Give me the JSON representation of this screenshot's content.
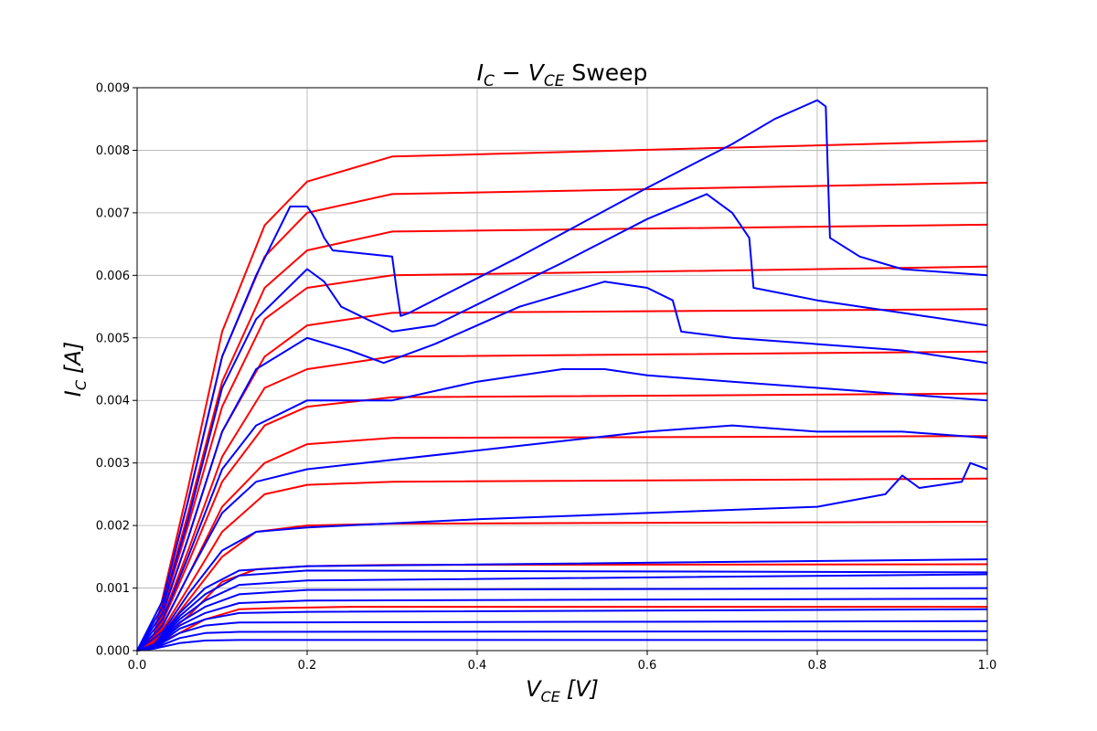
{
  "chart_data": {
    "type": "line",
    "title": {
      "i": "I",
      "i_sub": "C",
      "dash": " − ",
      "v": "V",
      "v_sub": "CE",
      "rest": " Sweep"
    },
    "xlabel": {
      "sym": "V",
      "sub": "CE",
      "unit": "[V]"
    },
    "ylabel": {
      "sym": "I",
      "sub": "C",
      "unit": "[A]"
    },
    "xlim": [
      0.0,
      1.0
    ],
    "ylim": [
      0.0,
      0.009
    ],
    "xticks": [
      "0.0",
      "0.2",
      "0.4",
      "0.6",
      "0.8",
      "1.0"
    ],
    "yticks": [
      "0.000",
      "0.001",
      "0.002",
      "0.003",
      "0.004",
      "0.005",
      "0.006",
      "0.007",
      "0.008",
      "0.009"
    ],
    "grid": true,
    "colors": {
      "model": "#ff0000",
      "measured": "#0000ff"
    },
    "series": [
      {
        "group": "model",
        "points": [
          [
            0,
            0
          ],
          [
            0.02,
            8e-05
          ],
          [
            0.05,
            0.00028
          ],
          [
            0.08,
            0.0005
          ],
          [
            0.12,
            0.00066
          ],
          [
            0.16,
            0.00068
          ],
          [
            0.25,
            0.0007
          ],
          [
            1.0,
            0.0007
          ]
        ]
      },
      {
        "group": "model",
        "points": [
          [
            0,
            0
          ],
          [
            0.02,
            0.0001
          ],
          [
            0.06,
            0.00055
          ],
          [
            0.1,
            0.0011
          ],
          [
            0.14,
            0.0013
          ],
          [
            0.2,
            0.00135
          ],
          [
            0.3,
            0.00137
          ],
          [
            1.0,
            0.00138
          ]
        ]
      },
      {
        "group": "model",
        "points": [
          [
            0,
            0
          ],
          [
            0.02,
            0.0001
          ],
          [
            0.06,
            0.0008
          ],
          [
            0.1,
            0.0015
          ],
          [
            0.14,
            0.0019
          ],
          [
            0.2,
            0.002
          ],
          [
            0.3,
            0.00203
          ],
          [
            1.0,
            0.00206
          ]
        ]
      },
      {
        "group": "model",
        "points": [
          [
            0,
            0
          ],
          [
            0.02,
            0.00012
          ],
          [
            0.06,
            0.001
          ],
          [
            0.1,
            0.0019
          ],
          [
            0.15,
            0.0025
          ],
          [
            0.2,
            0.00265
          ],
          [
            0.3,
            0.0027
          ],
          [
            1.0,
            0.00275
          ]
        ]
      },
      {
        "group": "model",
        "points": [
          [
            0,
            0
          ],
          [
            0.02,
            0.00013
          ],
          [
            0.06,
            0.0012
          ],
          [
            0.1,
            0.0023
          ],
          [
            0.15,
            0.003
          ],
          [
            0.2,
            0.0033
          ],
          [
            0.3,
            0.0034
          ],
          [
            1.0,
            0.00343
          ]
        ]
      },
      {
        "group": "model",
        "points": [
          [
            0,
            0
          ],
          [
            0.02,
            0.00015
          ],
          [
            0.06,
            0.0014
          ],
          [
            0.1,
            0.0027
          ],
          [
            0.15,
            0.0036
          ],
          [
            0.2,
            0.0039
          ],
          [
            0.3,
            0.00405
          ],
          [
            1.0,
            0.00411
          ]
        ]
      },
      {
        "group": "model",
        "points": [
          [
            0,
            0
          ],
          [
            0.02,
            0.00017
          ],
          [
            0.06,
            0.0016
          ],
          [
            0.1,
            0.0031
          ],
          [
            0.15,
            0.0042
          ],
          [
            0.2,
            0.0045
          ],
          [
            0.3,
            0.0047
          ],
          [
            1.0,
            0.00478
          ]
        ]
      },
      {
        "group": "model",
        "points": [
          [
            0,
            0
          ],
          [
            0.02,
            0.00019
          ],
          [
            0.06,
            0.0018
          ],
          [
            0.1,
            0.0035
          ],
          [
            0.15,
            0.0047
          ],
          [
            0.2,
            0.0052
          ],
          [
            0.3,
            0.0054
          ],
          [
            1.0,
            0.00546
          ]
        ]
      },
      {
        "group": "model",
        "points": [
          [
            0,
            0
          ],
          [
            0.02,
            0.0002
          ],
          [
            0.06,
            0.002
          ],
          [
            0.1,
            0.0039
          ],
          [
            0.15,
            0.0053
          ],
          [
            0.2,
            0.0058
          ],
          [
            0.3,
            0.006
          ],
          [
            1.0,
            0.00614
          ]
        ]
      },
      {
        "group": "model",
        "points": [
          [
            0,
            0
          ],
          [
            0.02,
            0.00022
          ],
          [
            0.06,
            0.0022
          ],
          [
            0.1,
            0.0043
          ],
          [
            0.15,
            0.0058
          ],
          [
            0.2,
            0.0064
          ],
          [
            0.3,
            0.0067
          ],
          [
            1.0,
            0.00681
          ]
        ]
      },
      {
        "group": "model",
        "points": [
          [
            0,
            0
          ],
          [
            0.02,
            0.00024
          ],
          [
            0.06,
            0.0024
          ],
          [
            0.1,
            0.0047
          ],
          [
            0.15,
            0.0063
          ],
          [
            0.2,
            0.007
          ],
          [
            0.3,
            0.0073
          ],
          [
            1.0,
            0.00748
          ]
        ]
      },
      {
        "group": "model",
        "points": [
          [
            0,
            0
          ],
          [
            0.02,
            0.00026
          ],
          [
            0.06,
            0.0026
          ],
          [
            0.1,
            0.0051
          ],
          [
            0.15,
            0.0068
          ],
          [
            0.2,
            0.0075
          ],
          [
            0.3,
            0.0079
          ],
          [
            1.0,
            0.00815
          ]
        ]
      },
      {
        "group": "measured",
        "points": [
          [
            0,
            0
          ],
          [
            0.02,
            3e-05
          ],
          [
            0.05,
            0.00012
          ],
          [
            0.08,
            0.00016
          ],
          [
            0.12,
            0.00017
          ],
          [
            1.0,
            0.00017
          ]
        ]
      },
      {
        "group": "measured",
        "points": [
          [
            0,
            0
          ],
          [
            0.02,
            4e-05
          ],
          [
            0.05,
            0.0002
          ],
          [
            0.08,
            0.00028
          ],
          [
            0.12,
            0.0003
          ],
          [
            1.0,
            0.00031
          ]
        ]
      },
      {
        "group": "measured",
        "points": [
          [
            0,
            0
          ],
          [
            0.02,
            5e-05
          ],
          [
            0.05,
            0.00028
          ],
          [
            0.08,
            0.0004
          ],
          [
            0.12,
            0.00045
          ],
          [
            1.0,
            0.00047
          ]
        ]
      },
      {
        "group": "measured",
        "points": [
          [
            0,
            0
          ],
          [
            0.02,
            5e-05
          ],
          [
            0.05,
            0.00035
          ],
          [
            0.08,
            0.0005
          ],
          [
            0.12,
            0.0006
          ],
          [
            0.2,
            0.00062
          ],
          [
            1.0,
            0.00066
          ]
        ]
      },
      {
        "group": "measured",
        "points": [
          [
            0,
            0
          ],
          [
            0.02,
            6e-05
          ],
          [
            0.05,
            0.0004
          ],
          [
            0.08,
            0.0006
          ],
          [
            0.12,
            0.00076
          ],
          [
            0.2,
            0.0008
          ],
          [
            1.0,
            0.00083
          ]
        ]
      },
      {
        "group": "measured",
        "points": [
          [
            0,
            0
          ],
          [
            0.02,
            7e-05
          ],
          [
            0.05,
            0.00045
          ],
          [
            0.08,
            0.0007
          ],
          [
            0.12,
            0.0009
          ],
          [
            0.2,
            0.00097
          ],
          [
            1.0,
            0.001
          ]
        ]
      },
      {
        "group": "measured",
        "points": [
          [
            0,
            0
          ],
          [
            0.02,
            8e-05
          ],
          [
            0.05,
            0.0005
          ],
          [
            0.08,
            0.0008
          ],
          [
            0.12,
            0.00105
          ],
          [
            0.2,
            0.00112
          ],
          [
            1.0,
            0.00122
          ]
        ]
      },
      {
        "group": "measured",
        "points": [
          [
            0,
            0
          ],
          [
            0.02,
            9e-05
          ],
          [
            0.05,
            0.00055
          ],
          [
            0.08,
            0.0009
          ],
          [
            0.12,
            0.0012
          ],
          [
            0.2,
            0.00128
          ],
          [
            1.0,
            0.00125
          ]
        ]
      },
      {
        "group": "measured",
        "points": [
          [
            0,
            0
          ],
          [
            0.02,
            0.0001
          ],
          [
            0.05,
            0.0006
          ],
          [
            0.08,
            0.001
          ],
          [
            0.12,
            0.00128
          ],
          [
            0.2,
            0.00135
          ],
          [
            1.0,
            0.00146
          ]
        ]
      },
      {
        "group": "measured",
        "points": [
          [
            0,
            0
          ],
          [
            0.03,
            0.0003
          ],
          [
            0.06,
            0.0009
          ],
          [
            0.1,
            0.0016
          ],
          [
            0.14,
            0.0019
          ],
          [
            0.2,
            0.00197
          ],
          [
            0.4,
            0.0021
          ],
          [
            0.6,
            0.0022
          ],
          [
            0.8,
            0.0023
          ],
          [
            0.88,
            0.0025
          ],
          [
            0.9,
            0.0028
          ],
          [
            0.92,
            0.0026
          ],
          [
            0.97,
            0.0027
          ],
          [
            0.98,
            0.003
          ],
          [
            1.0,
            0.0029
          ]
        ]
      },
      {
        "group": "measured",
        "points": [
          [
            0,
            0
          ],
          [
            0.03,
            0.0004
          ],
          [
            0.06,
            0.0012
          ],
          [
            0.1,
            0.0022
          ],
          [
            0.14,
            0.0027
          ],
          [
            0.2,
            0.0029
          ],
          [
            0.4,
            0.0032
          ],
          [
            0.6,
            0.0035
          ],
          [
            0.7,
            0.0036
          ],
          [
            0.8,
            0.0035
          ],
          [
            0.9,
            0.0035
          ],
          [
            1.0,
            0.0034
          ]
        ]
      },
      {
        "group": "measured",
        "points": [
          [
            0,
            0
          ],
          [
            0.03,
            0.0005
          ],
          [
            0.06,
            0.0015
          ],
          [
            0.1,
            0.0029
          ],
          [
            0.14,
            0.0036
          ],
          [
            0.2,
            0.004
          ],
          [
            0.3,
            0.004
          ],
          [
            0.4,
            0.0043
          ],
          [
            0.5,
            0.0045
          ],
          [
            0.55,
            0.0045
          ],
          [
            0.6,
            0.0044
          ],
          [
            0.7,
            0.0043
          ],
          [
            0.8,
            0.0042
          ],
          [
            0.9,
            0.0041
          ],
          [
            1.0,
            0.004
          ]
        ]
      },
      {
        "group": "measured",
        "points": [
          [
            0,
            0
          ],
          [
            0.03,
            0.0006
          ],
          [
            0.06,
            0.0018
          ],
          [
            0.1,
            0.0035
          ],
          [
            0.14,
            0.0045
          ],
          [
            0.2,
            0.005
          ],
          [
            0.25,
            0.0048
          ],
          [
            0.29,
            0.0046
          ],
          [
            0.35,
            0.0049
          ],
          [
            0.45,
            0.0055
          ],
          [
            0.55,
            0.0059
          ],
          [
            0.6,
            0.0058
          ],
          [
            0.63,
            0.0056
          ],
          [
            0.64,
            0.0051
          ],
          [
            0.7,
            0.005
          ],
          [
            0.8,
            0.0049
          ],
          [
            0.9,
            0.0048
          ],
          [
            1.0,
            0.0046
          ]
        ]
      },
      {
        "group": "measured",
        "points": [
          [
            0,
            0
          ],
          [
            0.03,
            0.0007
          ],
          [
            0.06,
            0.0021
          ],
          [
            0.1,
            0.0042
          ],
          [
            0.14,
            0.0053
          ],
          [
            0.2,
            0.0061
          ],
          [
            0.22,
            0.0059
          ],
          [
            0.24,
            0.0055
          ],
          [
            0.3,
            0.0051
          ],
          [
            0.35,
            0.0052
          ],
          [
            0.5,
            0.0062
          ],
          [
            0.6,
            0.0069
          ],
          [
            0.67,
            0.0073
          ],
          [
            0.7,
            0.007
          ],
          [
            0.72,
            0.0066
          ],
          [
            0.725,
            0.0058
          ],
          [
            0.8,
            0.0056
          ],
          [
            0.9,
            0.0054
          ],
          [
            1.0,
            0.0052
          ]
        ]
      },
      {
        "group": "measured",
        "points": [
          [
            0,
            0
          ],
          [
            0.03,
            0.0008
          ],
          [
            0.06,
            0.0024
          ],
          [
            0.1,
            0.0047
          ],
          [
            0.14,
            0.006
          ],
          [
            0.18,
            0.0071
          ],
          [
            0.2,
            0.0071
          ],
          [
            0.21,
            0.0069
          ],
          [
            0.22,
            0.0066
          ],
          [
            0.23,
            0.0064
          ],
          [
            0.3,
            0.0063
          ],
          [
            0.305,
            0.0058
          ],
          [
            0.31,
            0.00535
          ],
          [
            0.32,
            0.0054
          ],
          [
            0.45,
            0.0063
          ],
          [
            0.6,
            0.0074
          ],
          [
            0.7,
            0.0081
          ],
          [
            0.75,
            0.0085
          ],
          [
            0.8,
            0.0088
          ],
          [
            0.81,
            0.0087
          ],
          [
            0.815,
            0.0066
          ],
          [
            0.85,
            0.0063
          ],
          [
            0.9,
            0.0061
          ],
          [
            1.0,
            0.006
          ]
        ]
      }
    ]
  }
}
